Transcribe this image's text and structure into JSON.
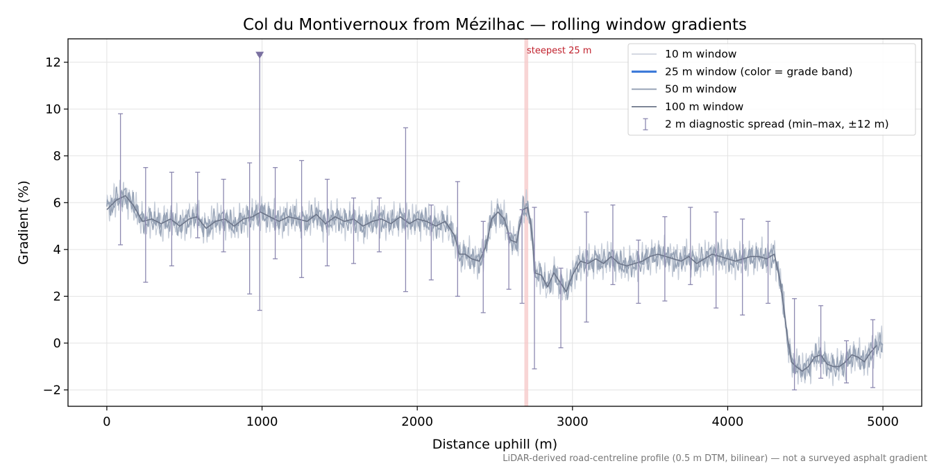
{
  "chart_data": {
    "type": "line",
    "title": "Col du Montivernoux from Mézilhac — rolling window gradients",
    "xlabel": "Distance uphill (m)",
    "ylabel": "Gradient (%)",
    "xlim": [
      -250,
      5250
    ],
    "ylim": [
      -2.7,
      13.0
    ],
    "xticks": [
      0,
      1000,
      2000,
      3000,
      4000,
      5000
    ],
    "yticks": [
      -2,
      0,
      2,
      4,
      6,
      8,
      10,
      12
    ],
    "xtick_labels": [
      "0",
      "1000",
      "2000",
      "3000",
      "4000",
      "5000"
    ],
    "ytick_labels": [
      "−2",
      "0",
      "2",
      "4",
      "6",
      "8",
      "10",
      "12"
    ],
    "grid": true,
    "legend_position": "top-right",
    "profile_100m": {
      "x": [
        0,
        60,
        120,
        170,
        230,
        290,
        350,
        410,
        470,
        530,
        580,
        640,
        700,
        760,
        820,
        880,
        940,
        990,
        1050,
        1110,
        1170,
        1230,
        1290,
        1350,
        1410,
        1470,
        1530,
        1590,
        1650,
        1710,
        1770,
        1830,
        1890,
        1950,
        2000,
        2060,
        2120,
        2180,
        2240,
        2270,
        2310,
        2350,
        2400,
        2440,
        2480,
        2520,
        2560,
        2600,
        2640,
        2680,
        2710,
        2730,
        2760,
        2800,
        2840,
        2880,
        2920,
        2960,
        3000,
        3050,
        3100,
        3150,
        3200,
        3250,
        3300,
        3350,
        3400,
        3450,
        3500,
        3550,
        3600,
        3650,
        3700,
        3750,
        3800,
        3850,
        3900,
        3950,
        4000,
        4050,
        4100,
        4150,
        4200,
        4250,
        4300,
        4340,
        4380,
        4410,
        4440,
        4480,
        4520,
        4560,
        4600,
        4640,
        4680,
        4720,
        4760,
        4800,
        4840,
        4880,
        4920,
        4960
      ],
      "y": [
        5.7,
        6.1,
        6.3,
        5.9,
        5.2,
        5.3,
        5.1,
        5.3,
        5.0,
        5.3,
        5.4,
        4.9,
        5.2,
        5.3,
        5.0,
        5.3,
        5.4,
        5.6,
        5.4,
        5.2,
        5.4,
        5.3,
        5.2,
        5.5,
        5.1,
        5.4,
        5.2,
        5.3,
        5.0,
        5.2,
        5.3,
        5.1,
        5.4,
        5.1,
        5.3,
        5.2,
        5.0,
        5.2,
        4.6,
        3.8,
        3.8,
        3.6,
        3.5,
        4.1,
        5.3,
        5.6,
        5.3,
        4.4,
        4.3,
        5.7,
        5.8,
        5.2,
        3.0,
        2.9,
        2.4,
        3.0,
        2.6,
        2.2,
        2.9,
        3.5,
        3.4,
        3.6,
        3.4,
        3.7,
        3.4,
        3.3,
        3.4,
        3.5,
        3.7,
        3.8,
        3.7,
        3.6,
        3.5,
        3.7,
        3.4,
        3.6,
        3.8,
        3.7,
        3.6,
        3.5,
        3.6,
        3.7,
        3.7,
        3.6,
        3.8,
        2.6,
        0.5,
        -0.8,
        -1.0,
        -1.2,
        -1.0,
        -0.6,
        -0.5,
        -0.9,
        -1.0,
        -1.0,
        -0.8,
        -0.5,
        -0.6,
        -0.8,
        -0.4,
        -0.1
      ]
    },
    "error_bars": {
      "x": [
        88,
        250,
        418,
        585,
        752,
        920,
        985,
        1085,
        1255,
        1420,
        1590,
        1755,
        1925,
        2090,
        2260,
        2425,
        2590,
        2675,
        2755,
        2925,
        3090,
        3260,
        3425,
        3595,
        3760,
        3925,
        4095,
        4260,
        4430,
        4600,
        4765,
        4935
      ],
      "lo": [
        4.2,
        2.6,
        3.3,
        4.5,
        3.9,
        2.1,
        1.4,
        3.6,
        2.8,
        3.3,
        3.4,
        3.9,
        2.2,
        2.7,
        2.0,
        1.3,
        2.3,
        1.7,
        -1.1,
        -0.2,
        0.9,
        2.5,
        1.7,
        1.8,
        2.5,
        1.5,
        1.2,
        1.7,
        -2.0,
        -1.5,
        -1.7,
        -1.9
      ],
      "hi": [
        9.8,
        7.5,
        7.3,
        7.3,
        7.0,
        7.7,
        12.3,
        7.5,
        7.8,
        7.0,
        6.2,
        6.2,
        9.2,
        5.9,
        6.9,
        5.2,
        4.7,
        5.7,
        5.8,
        3.2,
        5.6,
        5.9,
        4.4,
        5.4,
        5.8,
        5.6,
        5.3,
        5.2,
        1.9,
        1.6,
        0.1,
        1.0
      ]
    },
    "outlier_marker": {
      "x": 985,
      "y": 12.3
    },
    "highlight_band": {
      "x0": 2690,
      "x1": 2715,
      "label": "steepest 25 m"
    },
    "legend": [
      {
        "label": "10 m window",
        "style": "line-thin-light"
      },
      {
        "label": "25 m window (color = grade band)",
        "style": "line-thick-blue"
      },
      {
        "label": "50 m window",
        "style": "line-medium"
      },
      {
        "label": "100 m window",
        "style": "line-dark"
      },
      {
        "label": "2 m diagnostic spread (min–max, ±12 m)",
        "style": "errorbar"
      }
    ],
    "footnote": "LiDAR-derived road-centreline profile (0.5 m DTM, bilinear) — not a surveyed asphalt gradient"
  },
  "colors": {
    "w10": "#c5ccd8",
    "w25": "#3a78d8",
    "w50": "#97a3b6",
    "w100": "#6c7589",
    "errorbar": "#8c88b0",
    "marker": "#7a70a0",
    "highlight": "#f6c7c7",
    "highlight_text": "#c0202c",
    "grid": "#e3e3e3"
  }
}
